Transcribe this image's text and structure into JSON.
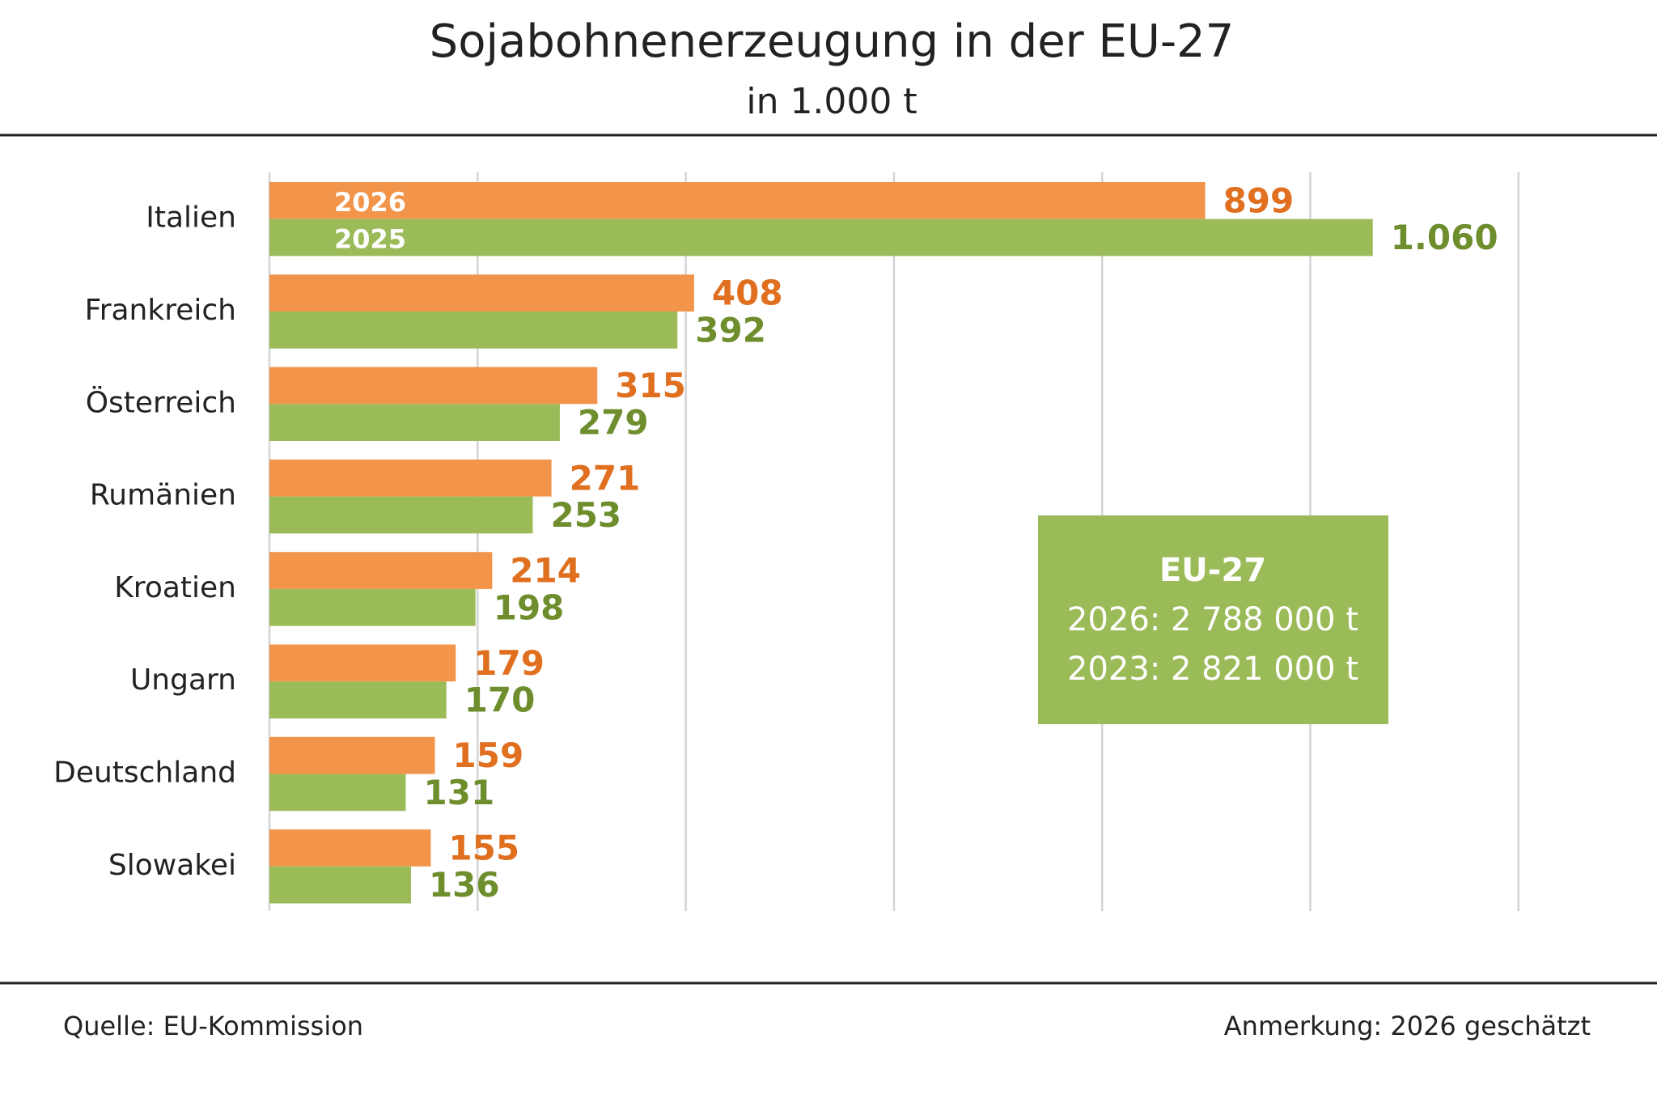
{
  "chart_data": {
    "type": "hbar",
    "title": "Sojabohnenerzeugung in der EU-27",
    "subtitle": "in 1.000 t",
    "categories": [
      "Italien",
      "Frankreich",
      "Österreich",
      "Rumänien",
      "Kroatien",
      "Ungarn",
      "Deutschland",
      "Slowakei"
    ],
    "series": [
      {
        "name": "2026",
        "color": "#f2954b",
        "label_color": "#e0701f",
        "values": [
          899,
          408,
          315,
          271,
          214,
          179,
          159,
          155
        ]
      },
      {
        "name": "2025",
        "color": "#9bbb59",
        "label_color": "#6e8e2e",
        "values": [
          1060,
          392,
          279,
          253,
          198,
          170,
          131,
          136
        ],
        "value_labels": [
          "1.060",
          "392",
          "279",
          "253",
          "198",
          "170",
          "131",
          "136"
        ]
      }
    ],
    "xlim": [
      0,
      1200
    ],
    "xticks": [
      0,
      200,
      400,
      600,
      800,
      1000,
      1200
    ],
    "grid": true,
    "annotation": {
      "title": "EU-27",
      "lines": [
        "2026: 2 788 000 t",
        "2023: 2 821 000 t"
      ],
      "color": "#9bbb59"
    },
    "source": "Quelle:  EU-Kommission",
    "note": "Anmerkung: 2026 geschätzt"
  }
}
